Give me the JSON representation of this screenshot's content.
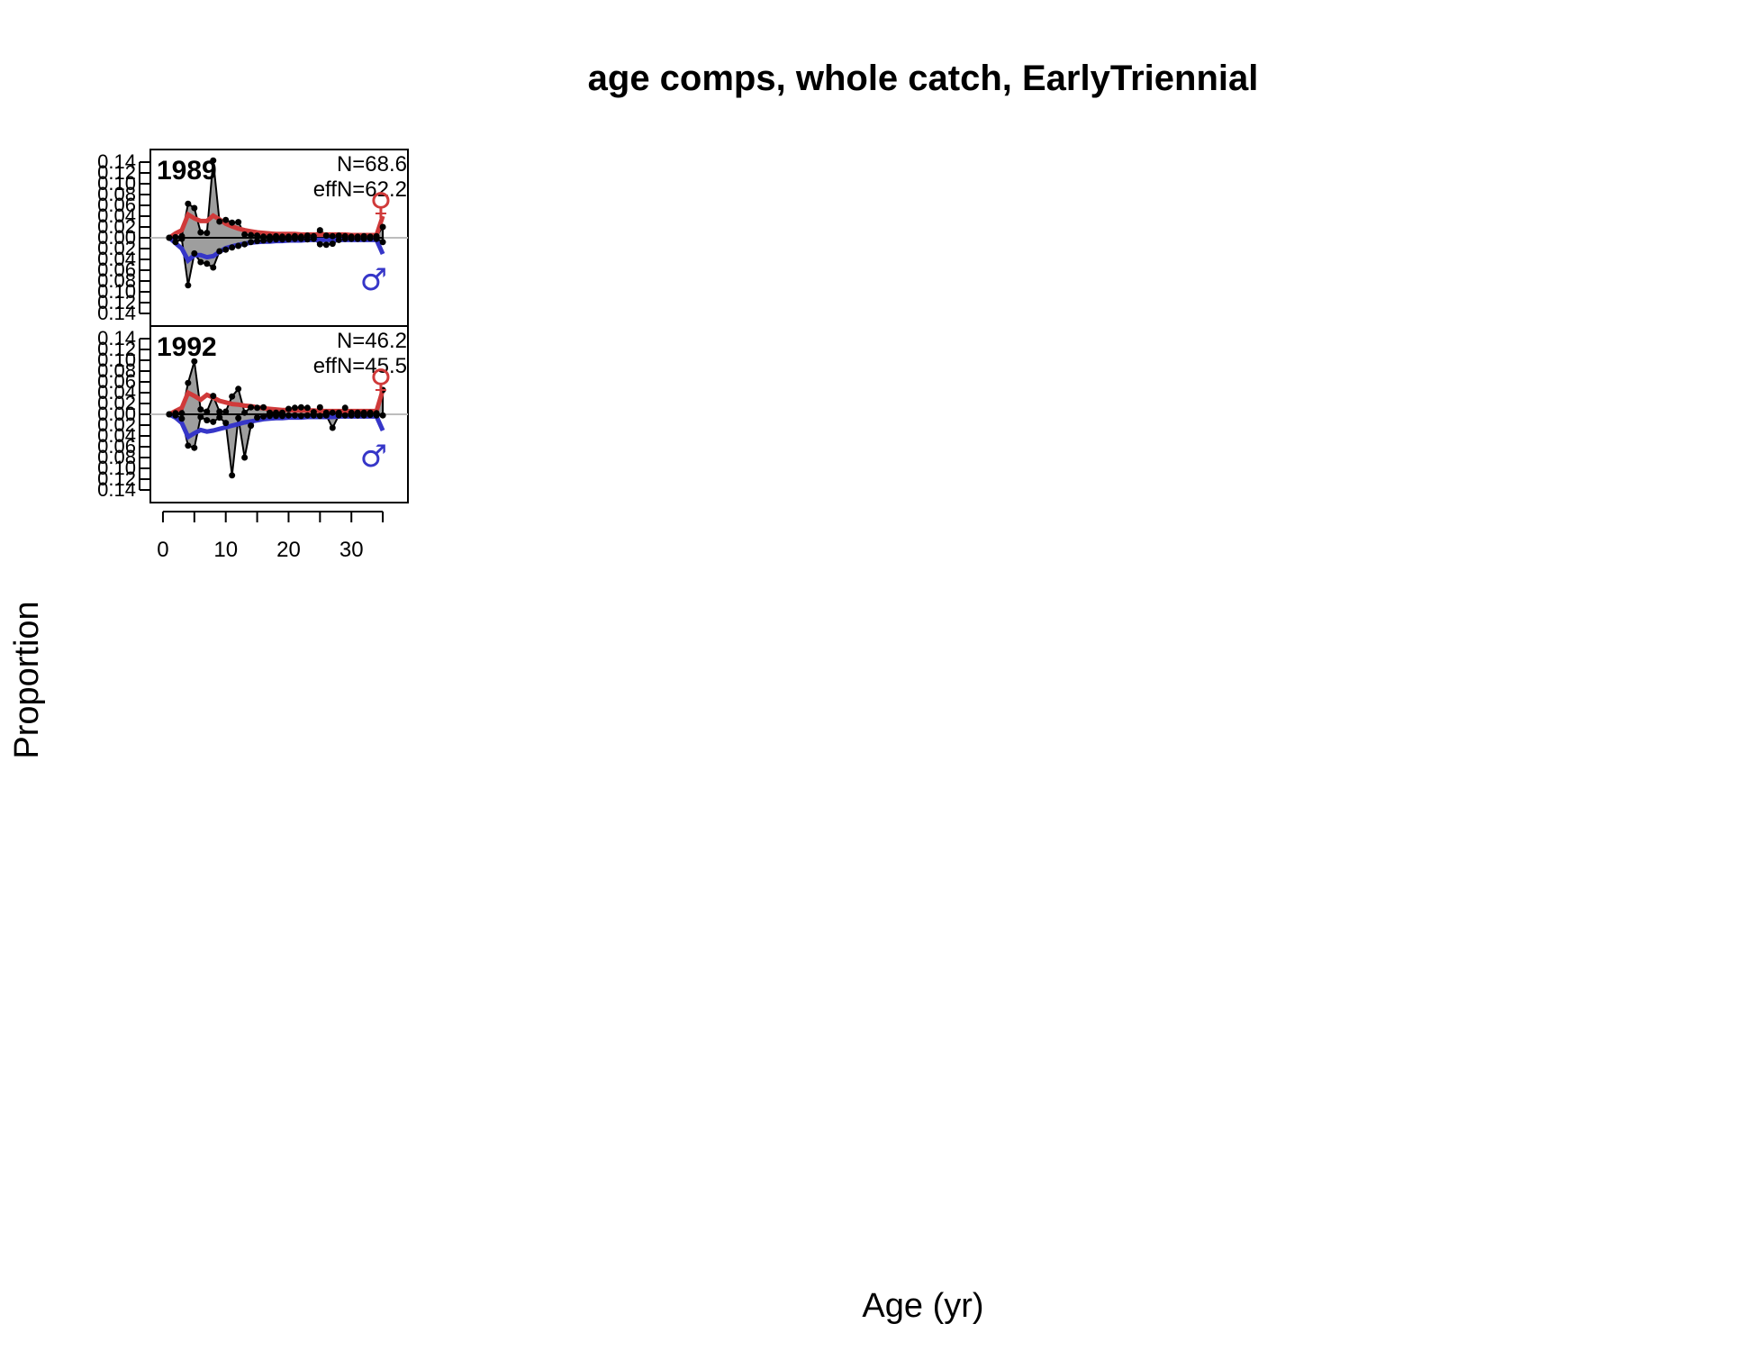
{
  "chart_data": {
    "type": "area",
    "title": "age comps, whole catch, EarlyTriennial",
    "xlabel": "Age (yr)",
    "ylabel": "Proportion",
    "xlim": [
      -2,
      39
    ],
    "ylim": [
      -0.14,
      0.14
    ],
    "x_ticks": [
      0,
      10,
      20,
      30
    ],
    "y_ticks": [
      "0.14",
      "0.12",
      "0.10",
      "0.08",
      "0.06",
      "0.04",
      "0.02",
      "0.00",
      "0.02",
      "0.04",
      "0.06",
      "0.08",
      "0.10",
      "0.12",
      "0.14"
    ],
    "orientation": "females plotted above zero, males below zero",
    "colors": {
      "female": "#d03a3a",
      "male": "#3636c8",
      "observed_fill": "#9e9e9e",
      "zero_line": "#bdbdbd"
    },
    "sex_symbols": {
      "female": "♀",
      "male": "♂"
    },
    "panels": [
      {
        "year": "1989",
        "n_label": "N=68.6",
        "effn_label": "effN=62.2",
        "ages": [
          1,
          2,
          3,
          4,
          5,
          6,
          7,
          8,
          9,
          10,
          11,
          12,
          13,
          14,
          15,
          16,
          17,
          18,
          19,
          20,
          21,
          22,
          23,
          24,
          25,
          26,
          27,
          28,
          29,
          30,
          31,
          32,
          33,
          34,
          35
        ],
        "female_obs": [
          0.0,
          0.001,
          0.003,
          0.063,
          0.055,
          0.01,
          0.009,
          0.143,
          0.03,
          0.033,
          0.028,
          0.029,
          0.006,
          0.005,
          0.004,
          0.002,
          0.002,
          0.003,
          0.002,
          0.002,
          0.003,
          0.002,
          0.004,
          0.003,
          0.014,
          0.004,
          0.003,
          0.004,
          0.003,
          0.002,
          0.002,
          0.003,
          0.002,
          0.003,
          0.02
        ],
        "female_exp": [
          0.0,
          0.008,
          0.014,
          0.043,
          0.036,
          0.031,
          0.031,
          0.041,
          0.034,
          0.026,
          0.021,
          0.017,
          0.014,
          0.012,
          0.01,
          0.009,
          0.008,
          0.007,
          0.007,
          0.007,
          0.007,
          0.006,
          0.006,
          0.006,
          0.006,
          0.006,
          0.006,
          0.006,
          0.006,
          0.005,
          0.005,
          0.005,
          0.005,
          0.005,
          0.04
        ],
        "male_obs": [
          0.0,
          0.008,
          0.002,
          0.088,
          0.029,
          0.045,
          0.048,
          0.055,
          0.025,
          0.022,
          0.018,
          0.015,
          0.012,
          0.008,
          0.006,
          0.005,
          0.004,
          0.003,
          0.003,
          0.003,
          0.002,
          0.002,
          0.003,
          0.002,
          0.012,
          0.013,
          0.011,
          0.004,
          0.002,
          0.002,
          0.002,
          0.002,
          0.001,
          0.002,
          0.008
        ],
        "male_exp": [
          0.0,
          0.01,
          0.02,
          0.042,
          0.032,
          0.032,
          0.036,
          0.034,
          0.026,
          0.019,
          0.016,
          0.013,
          0.011,
          0.009,
          0.008,
          0.007,
          0.007,
          0.006,
          0.006,
          0.005,
          0.005,
          0.005,
          0.004,
          0.004,
          0.004,
          0.004,
          0.004,
          0.004,
          0.004,
          0.004,
          0.004,
          0.004,
          0.004,
          0.004,
          0.03
        ]
      },
      {
        "year": "1992",
        "n_label": "N=46.2",
        "effn_label": "effN=45.5",
        "ages": [
          1,
          2,
          3,
          4,
          5,
          6,
          7,
          8,
          9,
          10,
          11,
          12,
          13,
          14,
          15,
          16,
          17,
          18,
          19,
          20,
          21,
          22,
          23,
          24,
          25,
          26,
          27,
          28,
          29,
          30,
          31,
          32,
          33,
          34,
          35
        ],
        "female_obs": [
          0.0,
          0.002,
          0.002,
          0.058,
          0.098,
          0.009,
          0.005,
          0.034,
          0.005,
          0.005,
          0.033,
          0.047,
          0.003,
          0.013,
          0.012,
          0.013,
          0.003,
          0.003,
          0.003,
          0.01,
          0.012,
          0.013,
          0.012,
          0.004,
          0.013,
          0.003,
          0.003,
          0.003,
          0.012,
          0.003,
          0.003,
          0.003,
          0.003,
          0.002,
          0.045
        ],
        "female_exp": [
          0.0,
          0.006,
          0.012,
          0.04,
          0.034,
          0.027,
          0.036,
          0.031,
          0.025,
          0.022,
          0.019,
          0.018,
          0.016,
          0.015,
          0.013,
          0.011,
          0.01,
          0.009,
          0.008,
          0.008,
          0.007,
          0.007,
          0.007,
          0.007,
          0.006,
          0.006,
          0.006,
          0.006,
          0.006,
          0.006,
          0.006,
          0.006,
          0.006,
          0.006,
          0.045
        ],
        "male_obs": [
          0.0,
          0.002,
          0.008,
          0.058,
          0.062,
          0.005,
          0.011,
          0.014,
          0.006,
          0.016,
          0.113,
          0.007,
          0.08,
          0.021,
          0.006,
          0.004,
          0.003,
          0.003,
          0.003,
          0.002,
          0.002,
          0.003,
          0.002,
          0.002,
          0.003,
          0.002,
          0.025,
          0.002,
          0.002,
          0.002,
          0.002,
          0.002,
          0.001,
          0.002,
          0.002
        ],
        "male_exp": [
          0.0,
          0.006,
          0.016,
          0.042,
          0.035,
          0.029,
          0.032,
          0.03,
          0.027,
          0.024,
          0.021,
          0.018,
          0.015,
          0.013,
          0.011,
          0.009,
          0.008,
          0.007,
          0.007,
          0.006,
          0.006,
          0.006,
          0.005,
          0.005,
          0.005,
          0.005,
          0.005,
          0.004,
          0.004,
          0.004,
          0.004,
          0.004,
          0.004,
          0.004,
          0.03
        ]
      }
    ]
  }
}
